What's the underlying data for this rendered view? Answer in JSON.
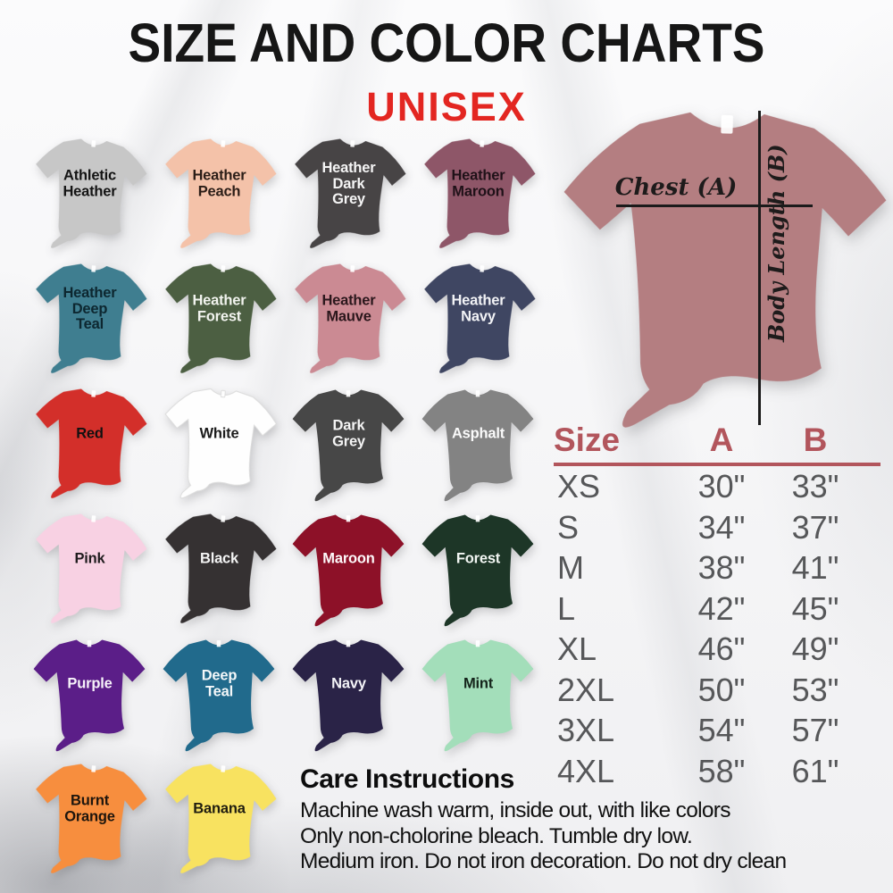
{
  "title": "SIZE AND COLOR CHARTS",
  "subtitle": "UNISEX",
  "accent_colors": {
    "title_black": "#161616",
    "subtitle_red": "#e32621",
    "table_header_red": "#b2555c",
    "table_body_grey": "#565759",
    "measure_line_black": "#1b1b1b"
  },
  "colors_grid": {
    "items": [
      {
        "name": "Athletic Heather",
        "lines": [
          "Athletic",
          "Heather"
        ],
        "fill": "#c7c7c7",
        "text": "#141414",
        "style": "photo"
      },
      {
        "name": "Heather Peach",
        "lines": [
          "Heather",
          "Peach"
        ],
        "fill": "#f4c2a9",
        "text": "#2b1d17",
        "style": "photo"
      },
      {
        "name": "Heather Dark Grey",
        "lines": [
          "Heather",
          "Dark",
          "Grey"
        ],
        "fill": "#474445",
        "text": "#f5f5f5",
        "style": "photo"
      },
      {
        "name": "Heather Maroon",
        "lines": [
          "Heather",
          "Maroon"
        ],
        "fill": "#8e5668",
        "text": "#1f1118",
        "style": "photo"
      },
      {
        "name": "Heather Deep Teal",
        "lines": [
          "Heather",
          "Deep",
          "Teal"
        ],
        "fill": "#3f7e90",
        "text": "#0d2730",
        "style": "photo"
      },
      {
        "name": "Heather Forest",
        "lines": [
          "Heather",
          "Forest"
        ],
        "fill": "#4c5f42",
        "text": "#f2f4ef",
        "style": "photo"
      },
      {
        "name": "Heather Mauve",
        "lines": [
          "Heather",
          "Mauve"
        ],
        "fill": "#cb8a93",
        "text": "#2b171c",
        "style": "photo"
      },
      {
        "name": "Heather Navy",
        "lines": [
          "Heather",
          "Navy"
        ],
        "fill": "#3f4662",
        "text": "#f2f3f6",
        "style": "photo"
      },
      {
        "name": "Red",
        "lines": [
          "Red"
        ],
        "fill": "#d32f2a",
        "text": "#131111",
        "style": "photo"
      },
      {
        "name": "White",
        "lines": [
          "White"
        ],
        "fill": "#fefefe",
        "stroke": "#dcdcdc",
        "text": "#1c1c1c",
        "style": "photo"
      },
      {
        "name": "Dark Grey",
        "lines": [
          "Dark",
          "Grey"
        ],
        "fill": "#474747",
        "text": "#f4f4f4",
        "style": "flat"
      },
      {
        "name": "Asphalt",
        "lines": [
          "Asphalt"
        ],
        "fill": "#838383",
        "text": "#fafafa",
        "style": "flat"
      },
      {
        "name": "Pink",
        "lines": [
          "Pink"
        ],
        "fill": "#f8d1e3",
        "text": "#201c1e",
        "style": "photo"
      },
      {
        "name": "Black",
        "lines": [
          "Black"
        ],
        "fill": "#353132",
        "text": "#f4f4f4",
        "style": "photo"
      },
      {
        "name": "Maroon",
        "lines": [
          "Maroon"
        ],
        "fill": "#8d1128",
        "text": "#fdf9fa",
        "style": "flat"
      },
      {
        "name": "Forest",
        "lines": [
          "Forest"
        ],
        "fill": "#1d3627",
        "text": "#f2f6f3",
        "style": "flat"
      },
      {
        "name": "Purple",
        "lines": [
          "Purple"
        ],
        "fill": "#5b1e88",
        "text": "#f6f2f9",
        "style": "flat"
      },
      {
        "name": "Deep Teal",
        "lines": [
          "Deep",
          "Teal"
        ],
        "fill": "#216a8c",
        "text": "#f3f7f9",
        "style": "flat"
      },
      {
        "name": "Navy",
        "lines": [
          "Navy"
        ],
        "fill": "#2a2347",
        "text": "#f3f3f7",
        "style": "flat"
      },
      {
        "name": "Mint",
        "lines": [
          "Mint"
        ],
        "fill": "#a3deba",
        "text": "#15241b",
        "style": "flat"
      },
      {
        "name": "Burnt Orange",
        "lines": [
          "Burnt",
          "Orange"
        ],
        "fill": "#f78e3e",
        "text": "#1d150d",
        "style": "photo"
      },
      {
        "name": "Banana",
        "lines": [
          "Banana"
        ],
        "fill": "#f8e260",
        "text": "#201d10",
        "style": "photo"
      }
    ]
  },
  "measurement_diagram": {
    "shirt_color_name": "Heather Mauve",
    "shirt_fill": "#b47e81",
    "chest_label": "Chest (A)",
    "body_length_label": "Body Length (B)"
  },
  "size_chart": {
    "headers": [
      "Size",
      "A",
      "B"
    ],
    "rows": [
      [
        "XS",
        "30\"",
        "33\""
      ],
      [
        "S",
        "34\"",
        "37\""
      ],
      [
        "M",
        "38\"",
        "41\""
      ],
      [
        "L",
        "42\"",
        "45\""
      ],
      [
        "XL",
        "46\"",
        "49\""
      ],
      [
        "2XL",
        "50\"",
        "53\""
      ],
      [
        "3XL",
        "54\"",
        "57\""
      ],
      [
        "4XL",
        "58\"",
        "61\""
      ]
    ]
  },
  "care": {
    "heading": "Care Instructions",
    "lines": [
      "Machine wash warm, inside out, with like colors",
      "Only non-cholorine bleach. Tumble dry low.",
      "Medium iron. Do not iron decoration. Do not dry clean"
    ]
  },
  "chart_data": {
    "type": "table",
    "title": "Unisex size chart",
    "columns": [
      "Size",
      "A (Chest)",
      "B (Body Length)"
    ],
    "rows": [
      [
        "XS",
        "30\"",
        "33\""
      ],
      [
        "S",
        "34\"",
        "37\""
      ],
      [
        "M",
        "38\"",
        "41\""
      ],
      [
        "L",
        "42\"",
        "45\""
      ],
      [
        "XL",
        "46\"",
        "49\""
      ],
      [
        "2XL",
        "50\"",
        "53\""
      ],
      [
        "3XL",
        "54\"",
        "57\""
      ],
      [
        "4XL",
        "58\"",
        "61\""
      ]
    ]
  }
}
